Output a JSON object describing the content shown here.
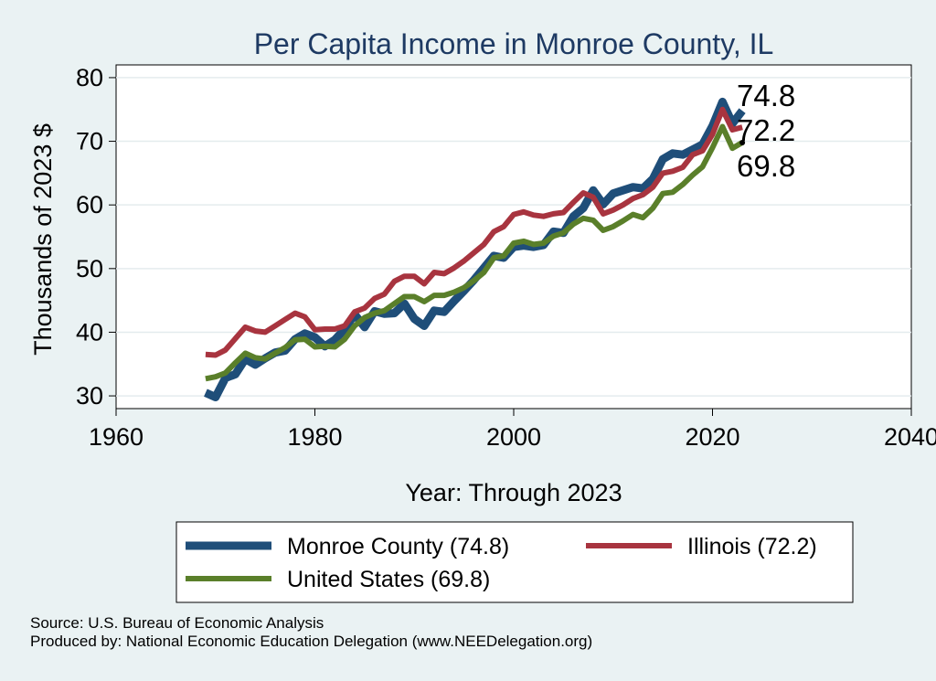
{
  "chart_data": {
    "type": "line",
    "title": "Per Capita Income in Monroe County, IL",
    "xlabel": "Year: Through 2023",
    "ylabel": "Thousands of 2023 $",
    "xlim": [
      1960,
      2040
    ],
    "ylim": [
      28,
      82
    ],
    "xticks": [
      1960,
      1980,
      2000,
      2020,
      2040
    ],
    "yticks": [
      30,
      40,
      50,
      60,
      70,
      80
    ],
    "grid": "horizontal",
    "legend_position": "bottom",
    "end_labels": [
      "74.8",
      "72.2",
      "69.8"
    ],
    "x": [
      1969,
      1970,
      1971,
      1972,
      1973,
      1974,
      1975,
      1976,
      1977,
      1978,
      1979,
      1980,
      1981,
      1982,
      1983,
      1984,
      1985,
      1986,
      1987,
      1988,
      1989,
      1990,
      1991,
      1992,
      1993,
      1994,
      1995,
      1996,
      1997,
      1998,
      1999,
      2000,
      2001,
      2002,
      2003,
      2004,
      2005,
      2006,
      2007,
      2008,
      2009,
      2010,
      2011,
      2012,
      2013,
      2014,
      2015,
      2016,
      2017,
      2018,
      2019,
      2020,
      2021,
      2022,
      2023
    ],
    "series": [
      {
        "name": "Monroe County (74.8)",
        "color": "#1f4e79",
        "values": [
          30.5,
          29.8,
          32.8,
          33.4,
          35.8,
          34.9,
          35.9,
          36.8,
          37.1,
          38.9,
          39.8,
          39.2,
          37.8,
          38.8,
          40.5,
          42.8,
          40.8,
          43.3,
          42.9,
          43.0,
          44.5,
          42.1,
          41.0,
          43.4,
          43.2,
          44.9,
          46.5,
          48.2,
          50.1,
          52.0,
          51.7,
          53.4,
          53.6,
          53.4,
          53.7,
          55.8,
          55.6,
          58.2,
          59.5,
          62.3,
          60.1,
          61.8,
          62.3,
          62.8,
          62.6,
          64.1,
          67.2,
          68.1,
          67.9,
          68.7,
          69.5,
          72.4,
          76.2,
          72.8,
          74.8
        ]
      },
      {
        "name": "Illinois (72.2)",
        "color": "#a8343f",
        "values": [
          36.5,
          36.4,
          37.2,
          39.0,
          40.8,
          40.2,
          40.0,
          41.0,
          42.0,
          43.0,
          42.4,
          40.4,
          40.5,
          40.5,
          41.0,
          43.2,
          43.8,
          45.3,
          46.0,
          48.0,
          48.8,
          48.8,
          47.6,
          49.4,
          49.2,
          50.1,
          51.2,
          52.5,
          53.8,
          55.8,
          56.6,
          58.5,
          58.9,
          58.4,
          58.2,
          58.6,
          58.8,
          60.4,
          61.9,
          61.2,
          58.6,
          59.2,
          60.0,
          61.0,
          61.6,
          62.8,
          65.0,
          65.3,
          65.9,
          67.9,
          68.5,
          71.1,
          75.0,
          71.8,
          72.2
        ]
      },
      {
        "name": "United States (69.8)",
        "color": "#5a7f2a",
        "values": [
          32.7,
          33.0,
          33.6,
          35.2,
          36.7,
          36.0,
          35.8,
          36.7,
          37.6,
          38.8,
          38.9,
          37.7,
          37.8,
          37.7,
          38.9,
          41.0,
          42.3,
          43.0,
          43.4,
          44.5,
          45.6,
          45.6,
          44.8,
          45.8,
          45.8,
          46.3,
          47.0,
          48.1,
          49.4,
          51.7,
          52.0,
          54.0,
          54.3,
          53.8,
          54.0,
          55.1,
          55.6,
          57.0,
          57.9,
          57.6,
          56.0,
          56.6,
          57.5,
          58.5,
          58.0,
          59.5,
          61.8,
          62.0,
          63.2,
          64.7,
          66.0,
          69.0,
          72.3,
          68.9,
          69.8
        ]
      }
    ]
  },
  "footer": {
    "source": "Source: U.S. Bureau of Economic Analysis",
    "produced_by": "Produced by: National Economic Education Delegation (www.NEEDelegation.org)"
  }
}
